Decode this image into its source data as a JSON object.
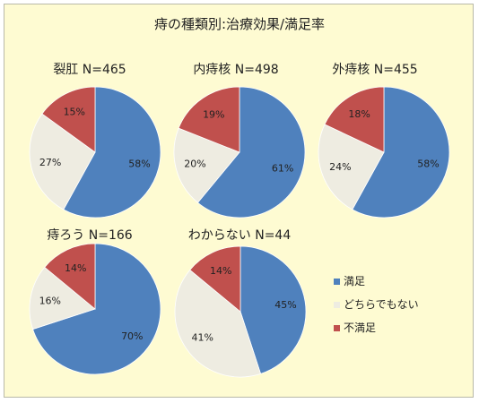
{
  "colors": {
    "manzoku": "#4f81bd",
    "dochiramo": "#eeece1",
    "fuman": "#c0504d",
    "background": "#fefbd2"
  },
  "chart_data": {
    "type": "pie",
    "title": "痔の種類別:治療効果/満足率",
    "legend": {
      "placement": "right",
      "entries": [
        "満足",
        "どちらでもない",
        "不満足"
      ]
    },
    "pies": [
      {
        "title": "裂肛 N=465",
        "values": [
          58,
          27,
          15
        ],
        "labels": [
          "58%",
          "27%",
          "15%"
        ]
      },
      {
        "title": "内痔核 N=498",
        "values": [
          61,
          20,
          19
        ],
        "labels": [
          "61%",
          "20%",
          "19%"
        ]
      },
      {
        "title": "外痔核 N=455",
        "values": [
          58,
          24,
          18
        ],
        "labels": [
          "58%",
          "24%",
          "18%"
        ]
      },
      {
        "title": "痔ろう N=166",
        "values": [
          70,
          16,
          14
        ],
        "labels": [
          "70%",
          "16%",
          "14%"
        ]
      },
      {
        "title": "わからない N=44",
        "values": [
          45,
          41,
          14
        ],
        "labels": [
          "45%",
          "41%",
          "14%"
        ]
      }
    ]
  }
}
